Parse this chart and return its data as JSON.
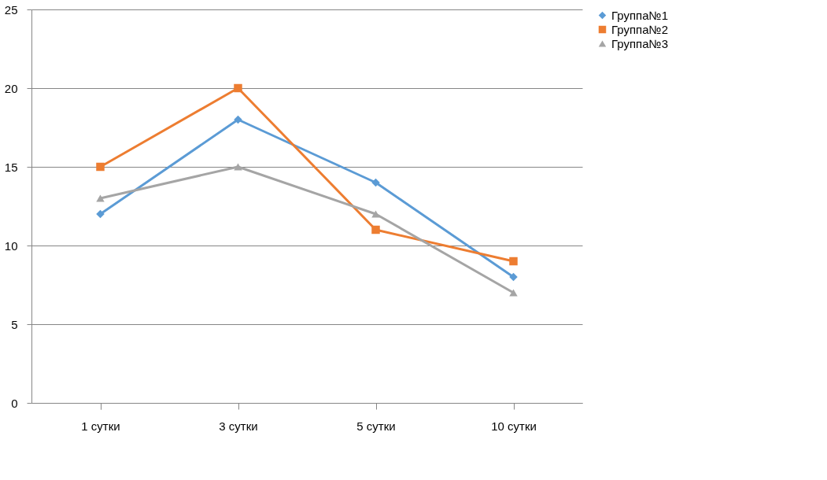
{
  "chart_data": {
    "type": "line",
    "categories": [
      "1 сутки",
      "3 сутки",
      "5 сутки",
      "10 сутки"
    ],
    "series": [
      {
        "name": "Группа№1",
        "color": "#5b9bd5",
        "marker": "diamond",
        "values": [
          12,
          18,
          14,
          8
        ]
      },
      {
        "name": "Группа№2",
        "color": "#ed7d31",
        "marker": "square",
        "values": [
          15,
          20,
          11,
          9
        ]
      },
      {
        "name": "Группа№3",
        "color": "#a5a5a5",
        "marker": "triangle",
        "values": [
          13,
          15,
          12,
          7
        ]
      }
    ],
    "ylim": [
      0,
      25
    ],
    "yticks": [
      0,
      5,
      10,
      15,
      20,
      25
    ],
    "grid": "y",
    "legend": "right",
    "line_style": "solid"
  }
}
